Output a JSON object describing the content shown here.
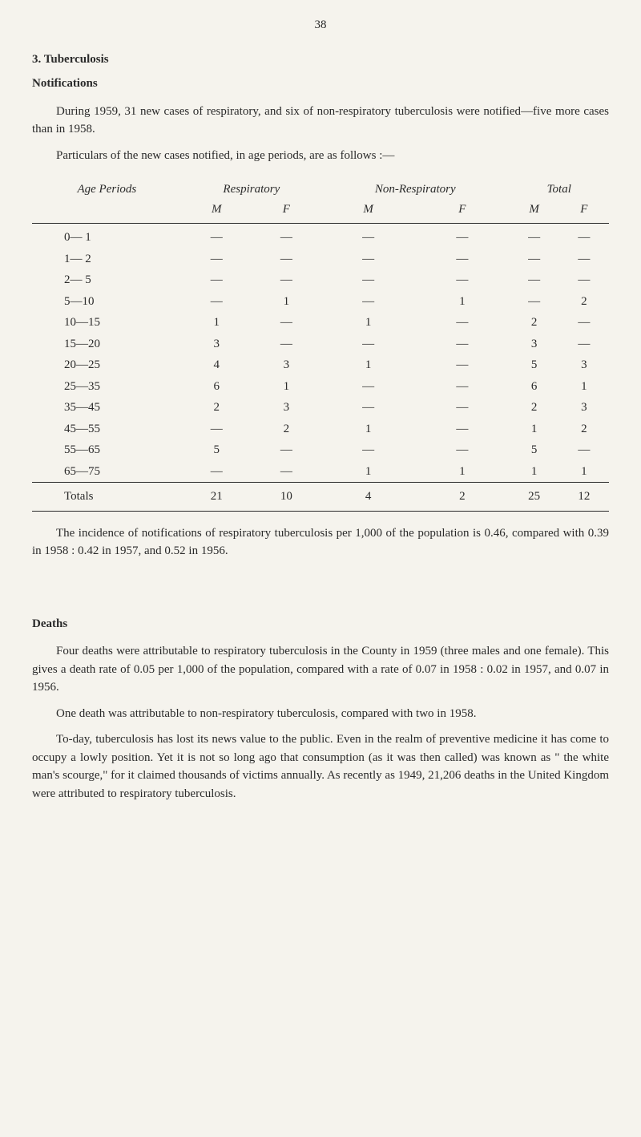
{
  "page_number": "38",
  "section_heading": "3. Tuberculosis",
  "notifications_heading": "Notifications",
  "para1": "During 1959, 31 new cases of respiratory, and six of non-respiratory tuberculosis were notified—five more cases than in 1958.",
  "para2": "Particulars of the new cases notified, in age periods, are as follows :—",
  "table": {
    "headers": {
      "age": "Age Periods",
      "resp": "Respiratory",
      "nonresp": "Non-Respiratory",
      "total": "Total",
      "m": "M",
      "f": "F"
    },
    "rows": [
      {
        "age": "0— 1",
        "rm": "—",
        "rf": "—",
        "nm": "—",
        "nf": "—",
        "tm": "—",
        "tf": "—"
      },
      {
        "age": "1— 2",
        "rm": "—",
        "rf": "—",
        "nm": "—",
        "nf": "—",
        "tm": "—",
        "tf": "—"
      },
      {
        "age": "2— 5",
        "rm": "—",
        "rf": "—",
        "nm": "—",
        "nf": "—",
        "tm": "—",
        "tf": "—"
      },
      {
        "age": "5—10",
        "rm": "—",
        "rf": "1",
        "nm": "—",
        "nf": "1",
        "tm": "—",
        "tf": "2"
      },
      {
        "age": "10—15",
        "rm": "1",
        "rf": "—",
        "nm": "1",
        "nf": "—",
        "tm": "2",
        "tf": "—"
      },
      {
        "age": "15—20",
        "rm": "3",
        "rf": "—",
        "nm": "—",
        "nf": "—",
        "tm": "3",
        "tf": "—"
      },
      {
        "age": "20—25",
        "rm": "4",
        "rf": "3",
        "nm": "1",
        "nf": "—",
        "tm": "5",
        "tf": "3"
      },
      {
        "age": "25—35",
        "rm": "6",
        "rf": "1",
        "nm": "—",
        "nf": "—",
        "tm": "6",
        "tf": "1"
      },
      {
        "age": "35—45",
        "rm": "2",
        "rf": "3",
        "nm": "—",
        "nf": "—",
        "tm": "2",
        "tf": "3"
      },
      {
        "age": "45—55",
        "rm": "—",
        "rf": "2",
        "nm": "1",
        "nf": "—",
        "tm": "1",
        "tf": "2"
      },
      {
        "age": "55—65",
        "rm": "5",
        "rf": "—",
        "nm": "—",
        "nf": "—",
        "tm": "5",
        "tf": "—"
      },
      {
        "age": "65—75",
        "rm": "—",
        "rf": "—",
        "nm": "1",
        "nf": "1",
        "tm": "1",
        "tf": "1"
      }
    ],
    "totals": {
      "label": "Totals",
      "rm": "21",
      "rf": "10",
      "nm": "4",
      "nf": "2",
      "tm": "25",
      "tf": "12"
    }
  },
  "para3": "The incidence of notifications of respiratory tuberculosis per 1,000 of the population is 0.46, compared with 0.39 in 1958 : 0.42 in 1957, and 0.52 in 1956.",
  "deaths_heading": "Deaths",
  "para4": "Four deaths were attributable to respiratory tuberculosis in the County in 1959 (three males and one female). This gives a death rate of 0.05 per 1,000 of the population, compared with a rate of 0.07 in 1958 : 0.02 in 1957, and 0.07 in 1956.",
  "para5": "One death was attributable to non-respiratory tuberculosis, compared with two in 1958.",
  "para6": "To-day, tuberculosis has lost its news value to the public. Even in the realm of preventive medicine it has come to occupy a lowly position. Yet it is not so long ago that consumption (as it was then called) was known as \" the white man's scourge,\" for it claimed thousands of victims annually. As recently as 1949, 21,206 deaths in the United Kingdom were attributed to respiratory tuberculosis."
}
